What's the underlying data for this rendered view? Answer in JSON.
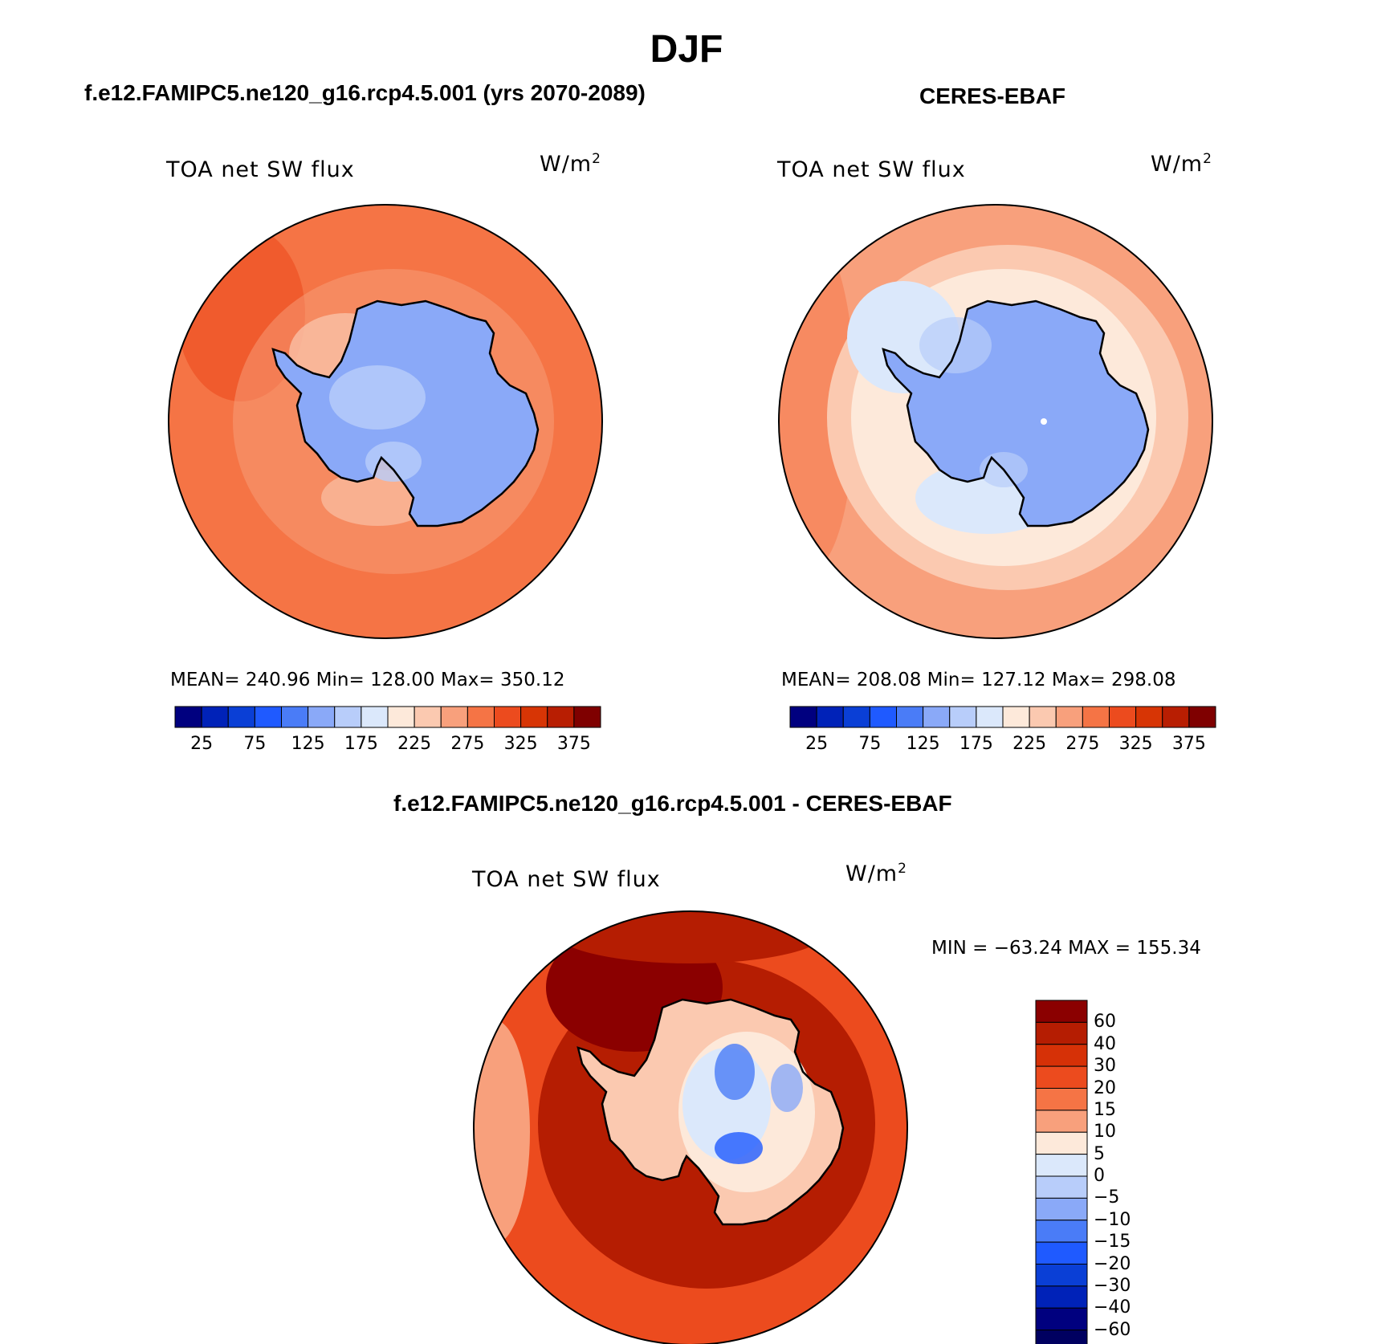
{
  "figure": {
    "title": "DJF"
  },
  "panels": [
    {
      "title": "f.e12.FAMIPC5.ne120_g16.rcp4.5.001 (yrs 2070-2089)",
      "variable": "TOA net SW flux",
      "units": "W/m",
      "units_sup": "2",
      "stats": "MEAN= 240.96   Min= 128.00   Max= 350.12",
      "mean": 240.96,
      "min": 128.0,
      "max": 350.12
    },
    {
      "title": "CERES-EBAF",
      "variable": "TOA net SW flux",
      "units": "W/m",
      "units_sup": "2",
      "stats": "MEAN= 208.08   Min= 127.12   Max= 298.08",
      "mean": 208.08,
      "min": 127.12,
      "max": 298.08
    },
    {
      "title": "f.e12.FAMIPC5.ne120_g16.rcp4.5.001 - CERES-EBAF",
      "variable": "TOA net SW flux",
      "units": "W/m",
      "units_sup": "2",
      "stats": "MIN = −63.24 MAX = 155.34",
      "min": -63.24,
      "max": 155.34
    }
  ],
  "colorbars": {
    "absolute": {
      "tick_labels": [
        "25",
        "75",
        "125",
        "175",
        "225",
        "275",
        "325",
        "375"
      ],
      "colors": [
        "#00007f",
        "#0022b8",
        "#0a3fd6",
        "#1f5aff",
        "#4a7cf7",
        "#8aa9f8",
        "#b8cdfa",
        "#dbe8fb",
        "#fde9da",
        "#fbc9b0",
        "#f8a07c",
        "#f57445",
        "#ec4b1e",
        "#d73505",
        "#b81e02",
        "#7f0000"
      ]
    },
    "difference": {
      "tick_labels": [
        "60",
        "40",
        "30",
        "20",
        "15",
        "10",
        "5",
        "0",
        "−5",
        "−10",
        "−15",
        "−20",
        "−30",
        "−40",
        "−60"
      ],
      "colors": [
        "#8b0000",
        "#b51d02",
        "#d63107",
        "#ec4b1e",
        "#f57445",
        "#f8a07c",
        "#fde9da",
        "#dbe8fb",
        "#b8cdfa",
        "#8aa9f8",
        "#4a7cf7",
        "#1f5aff",
        "#0a3fd6",
        "#0022b8",
        "#00007f",
        "#000060"
      ]
    }
  }
}
